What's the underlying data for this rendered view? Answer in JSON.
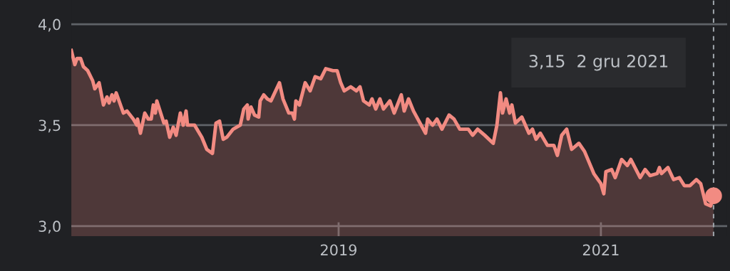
{
  "chart_data": {
    "type": "area",
    "x": [
      2016.962,
      2016.989,
      2017.005,
      2017.033,
      2017.054,
      2017.087,
      2017.125,
      2017.141,
      2017.174,
      2017.207,
      2017.234,
      2017.25,
      2017.272,
      2017.288,
      2017.304,
      2017.359,
      2017.386,
      2017.435,
      2017.462,
      2017.467,
      2017.489,
      2017.522,
      2017.549,
      2017.571,
      2017.587,
      2017.603,
      2017.614,
      2017.668,
      2017.685,
      2017.712,
      2017.739,
      2017.761,
      2017.793,
      2017.815,
      2017.837,
      2017.848,
      2017.902,
      2017.957,
      2017.995,
      2018.038,
      2018.065,
      2018.092,
      2018.12,
      2018.147,
      2018.196,
      2018.25,
      2018.277,
      2018.304,
      2018.31,
      2018.332,
      2018.359,
      2018.391,
      2018.402,
      2018.429,
      2018.457,
      2018.484,
      2018.549,
      2018.576,
      2018.62,
      2018.647,
      2018.663,
      2018.674,
      2018.701,
      2018.745,
      2018.783,
      2018.821,
      2018.864,
      2018.902,
      2018.957,
      2018.989,
      2019.016,
      2019.043,
      2019.092,
      2019.136,
      2019.163,
      2019.19,
      2019.234,
      2019.255,
      2019.283,
      2019.315,
      2019.342,
      2019.391,
      2019.424,
      2019.478,
      2019.5,
      2019.533,
      2019.571,
      2019.663,
      2019.679,
      2019.717,
      2019.75,
      2019.788,
      2019.842,
      2019.88,
      2019.924,
      2019.989,
      2020.022,
      2020.06,
      2020.114,
      2020.179,
      2020.207,
      2020.234,
      2020.25,
      2020.277,
      2020.304,
      2020.321,
      2020.348,
      2020.397,
      2020.451,
      2020.478,
      2020.505,
      2020.538,
      2020.592,
      2020.641,
      2020.668,
      2020.701,
      2020.739,
      2020.777,
      2020.832,
      2020.875,
      2020.946,
      2021.0,
      2021.022,
      2021.038,
      2021.082,
      2021.109,
      2021.158,
      2021.201,
      2021.228,
      2021.299,
      2021.337,
      2021.375,
      2021.429,
      2021.446,
      2021.462,
      2021.511,
      2021.554,
      2021.598,
      2021.636,
      2021.679,
      2021.728,
      2021.761,
      2021.799,
      2021.837,
      2021.859
    ],
    "series": [
      {
        "color": "#f28b82",
        "values": [
          3.87,
          3.8,
          3.83,
          3.83,
          3.79,
          3.77,
          3.72,
          3.68,
          3.71,
          3.6,
          3.64,
          3.61,
          3.65,
          3.62,
          3.66,
          3.56,
          3.57,
          3.53,
          3.5,
          3.53,
          3.46,
          3.56,
          3.53,
          3.53,
          3.6,
          3.56,
          3.62,
          3.51,
          3.52,
          3.44,
          3.49,
          3.45,
          3.56,
          3.5,
          3.57,
          3.5,
          3.5,
          3.44,
          3.38,
          3.36,
          3.51,
          3.52,
          3.43,
          3.44,
          3.48,
          3.5,
          3.58,
          3.6,
          3.53,
          3.59,
          3.55,
          3.54,
          3.62,
          3.65,
          3.63,
          3.62,
          3.71,
          3.63,
          3.56,
          3.56,
          3.53,
          3.62,
          3.6,
          3.71,
          3.67,
          3.74,
          3.73,
          3.78,
          3.77,
          3.77,
          3.71,
          3.67,
          3.69,
          3.67,
          3.69,
          3.62,
          3.6,
          3.63,
          3.58,
          3.63,
          3.58,
          3.62,
          3.56,
          3.65,
          3.57,
          3.63,
          3.57,
          3.46,
          3.53,
          3.5,
          3.53,
          3.48,
          3.55,
          3.53,
          3.48,
          3.48,
          3.45,
          3.48,
          3.45,
          3.41,
          3.5,
          3.66,
          3.56,
          3.63,
          3.56,
          3.6,
          3.51,
          3.54,
          3.46,
          3.48,
          3.43,
          3.46,
          3.4,
          3.4,
          3.35,
          3.45,
          3.48,
          3.38,
          3.41,
          3.37,
          3.26,
          3.21,
          3.16,
          3.27,
          3.28,
          3.24,
          3.33,
          3.3,
          3.33,
          3.24,
          3.28,
          3.25,
          3.26,
          3.29,
          3.26,
          3.29,
          3.23,
          3.24,
          3.2,
          3.2,
          3.23,
          3.21,
          3.11,
          3.1,
          3.15
        ]
      }
    ],
    "xlim": [
      2016.962,
      2021.962
    ],
    "xticks": [
      2019,
      2021
    ],
    "ylim": [
      2.95,
      4.12
    ],
    "yticks": [
      {
        "value": 3,
        "label": "3,0"
      },
      {
        "value": 3.5,
        "label": "3,5"
      },
      {
        "value": 4,
        "label": "4,0"
      }
    ],
    "grid": "y",
    "ref_lines": [
      {
        "axis": "x",
        "value": 2021.859,
        "line_style": "dashed",
        "color": "#9aa0a6"
      }
    ],
    "annotations": [
      "3,15  2 gru 2021"
    ]
  }
}
